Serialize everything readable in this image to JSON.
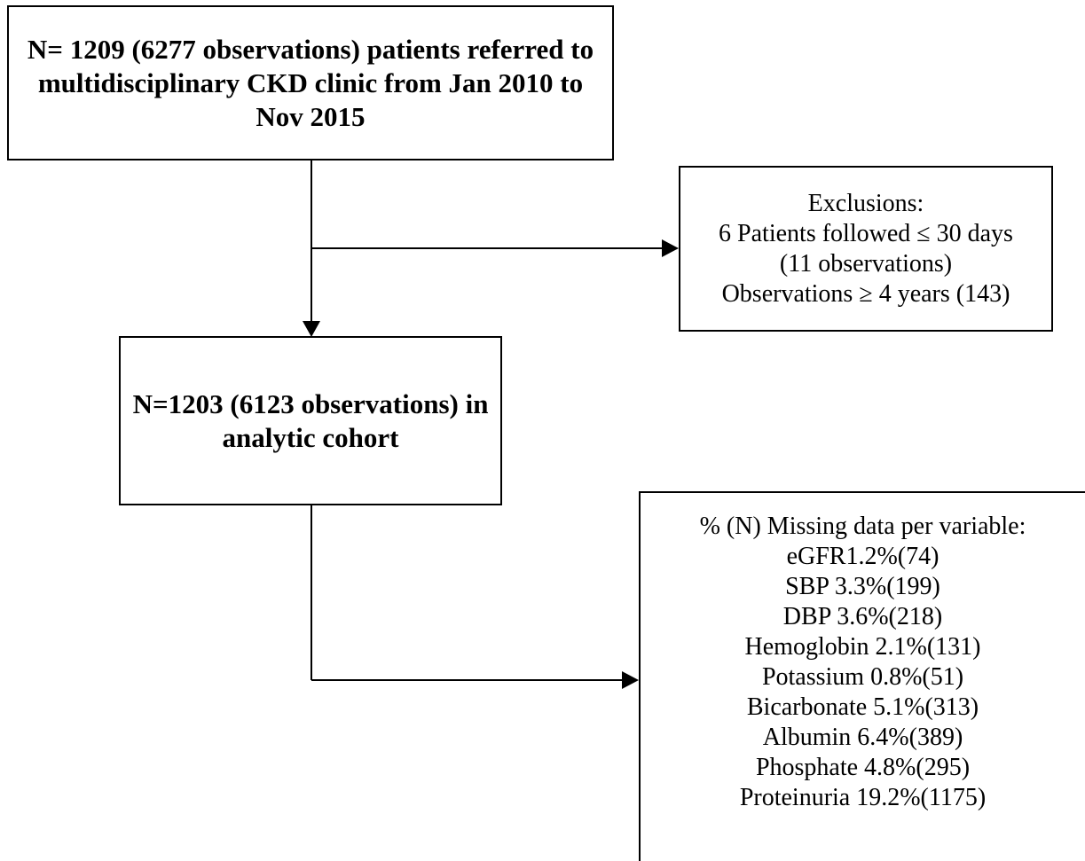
{
  "flowchart": {
    "start_box": {
      "lines": [
        "N= 1209 (6277 observations) patients referred to",
        "multidisciplinary CKD clinic from Jan 2010 to",
        "Nov 2015"
      ]
    },
    "exclusion_box": {
      "lines": [
        "Exclusions:",
        "6 Patients followed ≤ 30 days",
        "(11 observations)",
        "Observations ≥ 4 years (143)"
      ]
    },
    "cohort_box": {
      "lines": [
        "N=1203 (6123 observations) in",
        "analytic cohort"
      ]
    },
    "missing_box": {
      "heading": "% (N) Missing data per variable:",
      "items": [
        "eGFR1.2%(74)",
        "SBP 3.3%(199)",
        "DBP 3.6%(218)",
        "Hemoglobin 2.1%(131)",
        "Potassium 0.8%(51)",
        "Bicarbonate 5.1%(313)",
        "Albumin 6.4%(389)",
        "Phosphate 4.8%(295)",
        "Proteinuria 19.2%(1175)"
      ]
    }
  },
  "colors": {
    "line": "#000000",
    "background": "#ffffff"
  }
}
